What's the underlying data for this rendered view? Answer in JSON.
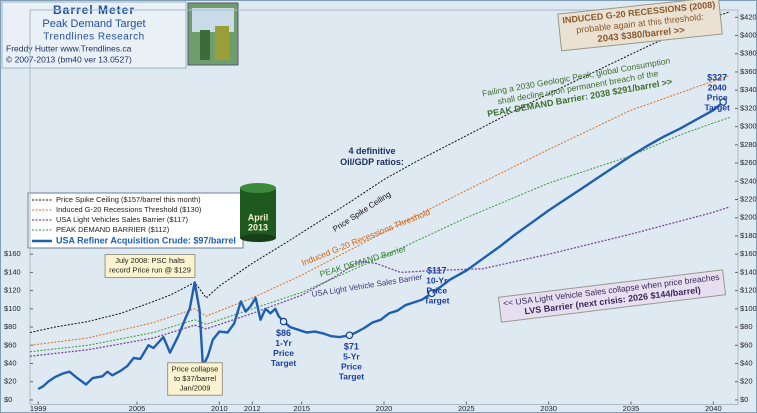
{
  "chart_data": {
    "type": "line",
    "title": "Barrel Meter",
    "subtitle": "Peak Demand Target",
    "publisher": "Trendlines Research",
    "author": "Freddy Hutter   www.Trendlines.ca",
    "copyright": "© 2007-2013   (bm40 ver 13.0527)",
    "xlim": [
      1998.5,
      2041.5
    ],
    "xticks": [
      1999,
      2005,
      2010,
      2012,
      2015,
      2020,
      2025,
      2030,
      2035,
      2040
    ],
    "ylim": [
      -5,
      428
    ],
    "yticks": [
      {
        "value": 0,
        "label": "$0"
      },
      {
        "value": 20,
        "label": "$20"
      },
      {
        "value": 40,
        "label": "$40"
      },
      {
        "value": 60,
        "label": "$60"
      },
      {
        "value": 80,
        "label": "$80"
      },
      {
        "value": 100,
        "label": "$100"
      },
      {
        "value": 120,
        "label": "$120"
      },
      {
        "value": 140,
        "label": "$140"
      },
      {
        "value": 160,
        "label": "$160"
      },
      {
        "value": 180,
        "label": "$180"
      },
      {
        "value": 200,
        "label": "$200"
      },
      {
        "value": 220,
        "label": "$220"
      },
      {
        "value": 240,
        "label": "$240"
      },
      {
        "value": 260,
        "label": "$260"
      },
      {
        "value": 280,
        "label": "$280"
      },
      {
        "value": 300,
        "label": "$300"
      },
      {
        "value": 320,
        "label": "$320"
      },
      {
        "value": 340,
        "label": "$340"
      },
      {
        "value": 360,
        "label": "$360"
      },
      {
        "value": 380,
        "label": "$380"
      },
      {
        "value": 400,
        "label": "$400"
      },
      {
        "value": 420,
        "label": "$420"
      }
    ],
    "yticks_left": [
      {
        "value": 0,
        "label": "$0"
      },
      {
        "value": 20,
        "label": "$20"
      },
      {
        "value": 40,
        "label": "$40"
      },
      {
        "value": 60,
        "label": "$60"
      },
      {
        "value": 80,
        "label": "$80"
      },
      {
        "value": 100,
        "label": "$100"
      },
      {
        "value": 120,
        "label": "$120"
      },
      {
        "value": 140,
        "label": "$140"
      },
      {
        "value": 160,
        "label": "$160"
      }
    ],
    "grid": false,
    "series": [
      {
        "name": "Price Spike Ceiling  ($157/barrel this month)",
        "color": "#111111",
        "style": "dotted",
        "width": 1,
        "x": [
          1998.5,
          2000,
          2002,
          2004,
          2006,
          2007,
          2008.5,
          2009.2,
          2010,
          2012,
          2014,
          2016,
          2018,
          2020,
          2022,
          2025,
          2028,
          2030,
          2033,
          2036,
          2038,
          2040,
          2041
        ],
        "values": [
          74,
          80,
          86,
          95,
          108,
          115,
          129,
          112,
          125,
          150,
          172,
          195,
          218,
          242,
          262,
          290,
          318,
          336,
          362,
          388,
          404,
          420,
          426
        ]
      },
      {
        "name": "Induced G-20 Recessions Threshold  ($130)",
        "color": "#e07020",
        "style": "dotted",
        "width": 1,
        "x": [
          1998.5,
          2002,
          2006,
          2008.5,
          2009.2,
          2012,
          2015,
          2020,
          2025,
          2030,
          2035,
          2040,
          2041
        ],
        "values": [
          60,
          68,
          85,
          100,
          92,
          112,
          137,
          184,
          230,
          275,
          318,
          350,
          356
        ]
      },
      {
        "name": "USA Light Vehicles Sales Barrier  ($117)",
        "color": "#7a4a9a",
        "style": "dotted",
        "width": 1.3,
        "x": [
          1998.5,
          2002,
          2006,
          2008.5,
          2009.2,
          2012,
          2015,
          2017,
          2018.5,
          2019.5,
          2021,
          2023,
          2026,
          2030,
          2035,
          2040,
          2041
        ],
        "values": [
          48,
          55,
          68,
          82,
          78,
          95,
          115,
          135,
          152,
          150,
          140,
          142,
          144,
          160,
          182,
          206,
          212
        ]
      },
      {
        "name": "PEAK DEMAND BARRIER  ($112)",
        "color": "#3a9a3a",
        "style": "dotted",
        "width": 1,
        "x": [
          1998.5,
          2002,
          2006,
          2008.5,
          2009.2,
          2012,
          2015,
          2020,
          2025,
          2030,
          2035,
          2038,
          2040,
          2041
        ],
        "values": [
          53,
          60,
          74,
          88,
          83,
          100,
          118,
          158,
          200,
          238,
          268,
          291,
          304,
          310
        ]
      },
      {
        "name": "USA Refiner Acquisition Crude:  $97/barrel",
        "color": "#1f5fb0",
        "style": "solid",
        "width": 2.4,
        "x": [
          1999,
          1999.3,
          1999.6,
          2000,
          2000.5,
          2000.9,
          2001.3,
          2001.9,
          2002.3,
          2002.9,
          2003.2,
          2003.5,
          2004,
          2004.4,
          2004.8,
          2005.2,
          2005.7,
          2006,
          2006.6,
          2007,
          2007.5,
          2007.9,
          2008.2,
          2008.5,
          2008.8,
          2009,
          2009.3,
          2009.6,
          2010,
          2010.5,
          2010.9,
          2011.3,
          2011.6,
          2011.9,
          2012.2,
          2012.5,
          2012.8,
          2013.1,
          2013.4,
          2013.6,
          2013.9,
          2014.3,
          2014.8,
          2015.3,
          2015.8,
          2016.3,
          2016.8,
          2017.3,
          2017.9,
          2018.3,
          2018.8,
          2019.3,
          2019.8,
          2020.3,
          2020.8,
          2021.3,
          2021.8,
          2022.3,
          2022.9,
          2023.5,
          2024,
          2025,
          2026,
          2027,
          2028,
          2029,
          2030,
          2031,
          2032,
          2033,
          2034,
          2035,
          2036,
          2037,
          2038,
          2039,
          2040,
          2040.6
        ],
        "values": [
          12,
          15,
          20,
          25,
          29,
          31,
          25,
          17,
          24,
          26,
          31,
          27,
          32,
          37,
          46,
          45,
          60,
          57,
          69,
          52,
          70,
          88,
          100,
          129,
          98,
          37,
          48,
          66,
          75,
          74,
          84,
          108,
          97,
          103,
          112,
          88,
          100,
          95,
          100,
          92,
          86,
          80,
          77,
          74,
          75,
          73,
          70,
          69,
          71,
          74,
          79,
          85,
          88,
          95,
          98,
          104,
          107,
          110,
          117,
          125,
          132,
          142,
          155,
          168,
          182,
          195,
          208,
          220,
          232,
          244,
          256,
          268,
          279,
          289,
          298,
          308,
          318,
          327
        ]
      }
    ],
    "targets": {
      "x": [
        2013.9,
        2017.9,
        2022.9,
        2040.6
      ],
      "values": [
        86,
        71,
        117,
        327
      ],
      "value_labels": [
        "$86",
        "$71",
        "$117",
        "$327"
      ],
      "captions": [
        [
          "1-Yr",
          "Price",
          "Target"
        ],
        [
          "5-Yr",
          "Price",
          "Target"
        ],
        [
          "10-Yr",
          "Price",
          "Target"
        ],
        [
          "2040",
          "Price",
          "Target"
        ]
      ]
    },
    "barrel_label": [
      "April",
      "2013"
    ],
    "annotations": [
      {
        "lines": [
          "4 definitive",
          "Oil/GDP ratios:"
        ]
      },
      {
        "lines": [
          "INDUCED G-20 RECESSIONS (2008)",
          "probable again at this threshold:",
          "2043  $380/barrel  >>"
        ]
      },
      {
        "lines": [
          "Failing a 2030 Geologic Peak, global Consumption",
          "shall decline upon permanent breach of the",
          "PEAK DEMAND Barrier:  2038  $291/barrel  >>"
        ]
      },
      {
        "lines": [
          "July 2008:  PSC halts",
          "record Price run @ $129"
        ]
      },
      {
        "lines": [
          "Price collapse",
          "to $37/barrel",
          "Jan/2009"
        ]
      },
      {
        "lines": [
          "<< USA Light Vehicle Sales collapse when price breaches",
          "LVS Barrier  (next crisis:  2026  $144/barrel)"
        ]
      },
      {
        "lines": [
          "Price Spike Ceiling"
        ]
      },
      {
        "lines": [
          "Induced G-20 Recessions Threshold"
        ]
      },
      {
        "lines": [
          "PEAK DEMAND Barrier"
        ]
      },
      {
        "lines": [
          "USA Light Vehicle Sales Barrier"
        ]
      }
    ]
  }
}
